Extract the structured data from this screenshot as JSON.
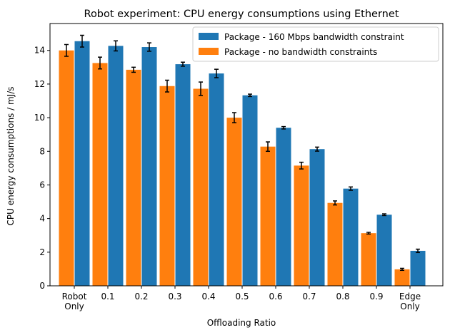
{
  "chart_data": {
    "type": "bar",
    "title": "Robot experiment: CPU energy consumptions using Ethernet",
    "xlabel": "Offloading Ratio",
    "ylabel": "CPU energy consumptions / mJ/s",
    "categories": [
      "Robot\nOnly",
      "0.1",
      "0.2",
      "0.3",
      "0.4",
      "0.5",
      "0.6",
      "0.7",
      "0.8",
      "0.9",
      "Edge\nOnly"
    ],
    "ylim": [
      0,
      15.6
    ],
    "yticks": [
      0,
      2,
      4,
      6,
      8,
      10,
      12,
      14
    ],
    "grid": false,
    "legend_position": "top-right",
    "series": [
      {
        "name": "Package - no bandwidth constraints",
        "color": "#ff7f0e",
        "values": [
          14.0,
          13.25,
          12.85,
          11.88,
          11.72,
          10.0,
          8.28,
          7.15,
          4.93,
          3.13,
          0.98
        ],
        "errors": [
          0.35,
          0.35,
          0.15,
          0.35,
          0.4,
          0.3,
          0.28,
          0.2,
          0.12,
          0.05,
          0.06
        ]
      },
      {
        "name": "Package - 160 Mbps bandwidth constraint",
        "color": "#1f77b4",
        "values": [
          14.55,
          14.27,
          14.2,
          13.18,
          12.63,
          11.33,
          9.4,
          8.13,
          5.78,
          4.23,
          2.08
        ],
        "errors": [
          0.35,
          0.3,
          0.25,
          0.12,
          0.25,
          0.07,
          0.07,
          0.12,
          0.1,
          0.05,
          0.1
        ]
      }
    ],
    "legend_order": [
      "Package - 160 Mbps bandwidth constraint",
      "Package - no bandwidth constraints"
    ]
  }
}
